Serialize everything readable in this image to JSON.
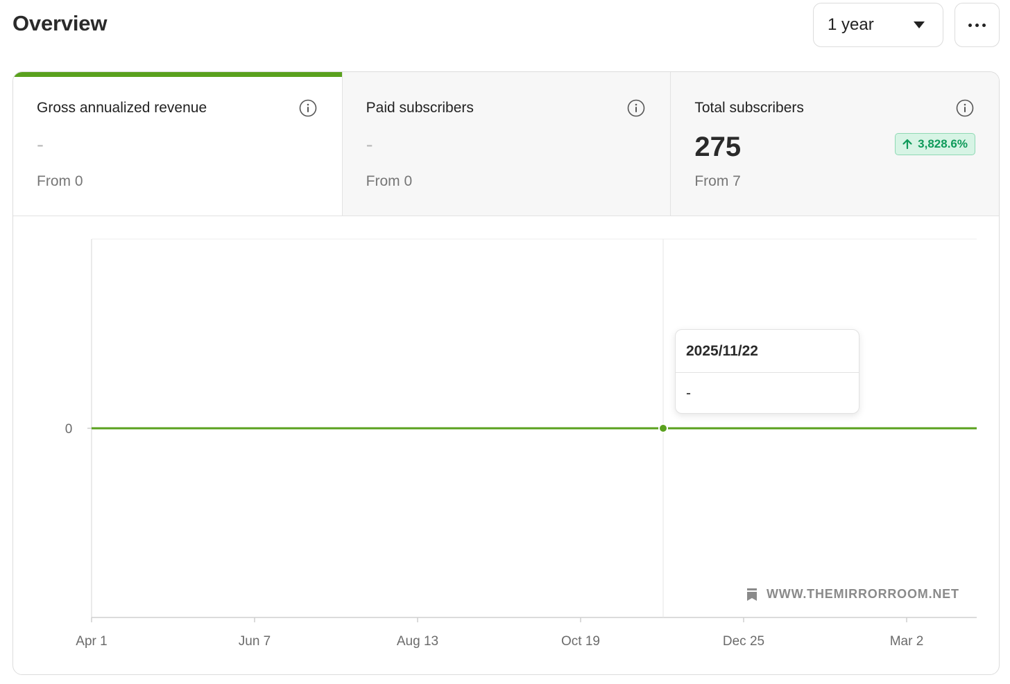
{
  "header": {
    "title": "Overview",
    "range_select": {
      "value": "1 year",
      "icon": "caret-down-icon"
    },
    "more_button": {
      "icon": "more-horizontal-icon"
    }
  },
  "tabs": [
    {
      "label": "Gross annualized revenue",
      "value": "-",
      "from": "From 0",
      "active": true,
      "icon": "info-icon"
    },
    {
      "label": "Paid subscribers",
      "value": "-",
      "from": "From 0",
      "active": false,
      "icon": "info-icon"
    },
    {
      "label": "Total subscribers",
      "value": "275",
      "from": "From 7",
      "active": false,
      "icon": "info-icon",
      "change": {
        "text": "3,828.6%",
        "direction": "up"
      }
    }
  ],
  "tooltip": {
    "date": "2025/11/22",
    "value": "-"
  },
  "watermark": {
    "text": "WWW.THEMIRRORROOM.NET",
    "icon": "bookmark-icon"
  },
  "colors": {
    "accent": "#5aa11e",
    "positive_text": "#0f9a5a",
    "positive_bg": "#d7f4e5"
  },
  "chart_data": {
    "type": "line",
    "x_ticks": [
      "Apr 1",
      "Jun 7",
      "Aug 13",
      "Oct 19",
      "Dec 25",
      "Mar 2"
    ],
    "y_ticks": [
      "0"
    ],
    "series": [
      {
        "values": [
          0,
          0,
          0,
          0,
          0,
          0
        ]
      }
    ],
    "highlight": {
      "x": "2025/11/22",
      "y": 0
    },
    "grid": false
  }
}
